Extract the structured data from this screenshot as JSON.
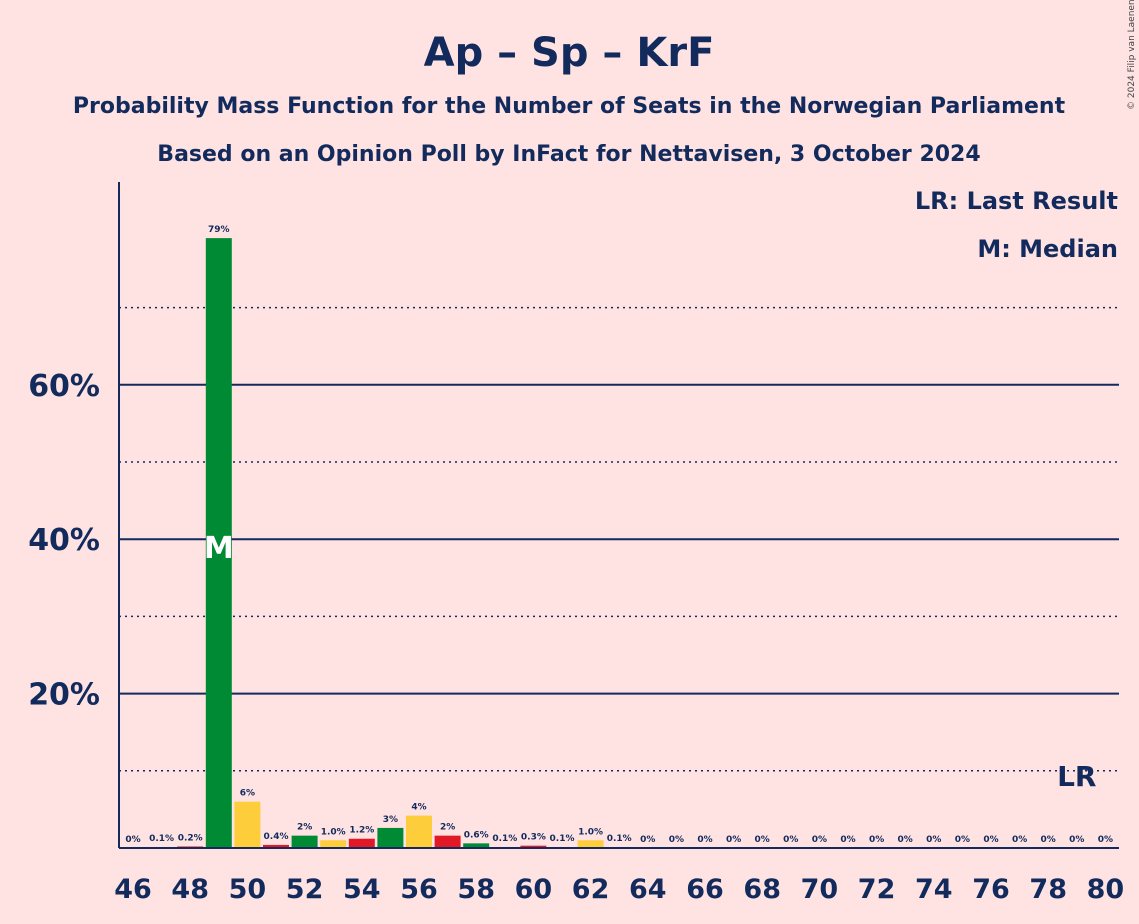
{
  "header": {
    "title": "Ap – Sp – KrF",
    "subtitle": "Probability Mass Function for the Number of Seats in the Norwegian Parliament",
    "source": "Based on an Opinion Poll by InFact for Nettavisen, 3 October 2024",
    "copyright": "© 2024 Filip van Laenen"
  },
  "legend": {
    "last_result": "LR: Last Result",
    "median": "M: Median"
  },
  "markers": {
    "median_label": "M",
    "median_seat": 49,
    "last_result_label": "LR",
    "last_result_seat": 79
  },
  "colors": {
    "background": "#FFE3E3",
    "text": "#122B5C",
    "ap": "#E11926",
    "sp": "#008A34",
    "krf": "#FECD3B"
  },
  "chart_data": {
    "type": "bar",
    "x": [
      46,
      47,
      48,
      49,
      50,
      51,
      52,
      53,
      54,
      55,
      56,
      57,
      58,
      59,
      60,
      61,
      62,
      63,
      64,
      65,
      66,
      67,
      68,
      69,
      70,
      71,
      72,
      73,
      74,
      75,
      76,
      77,
      78,
      79,
      80
    ],
    "values": [
      0,
      0.1,
      0.2,
      79,
      6,
      0.4,
      1.6,
      1.0,
      1.2,
      2.6,
      4.2,
      1.6,
      0.6,
      0.1,
      0.3,
      0.1,
      1.0,
      0.1,
      0,
      0,
      0,
      0,
      0,
      0,
      0,
      0,
      0,
      0,
      0,
      0,
      0,
      0,
      0,
      0,
      0
    ],
    "labels": [
      "0%",
      "0.1%",
      "0.2%",
      "79%",
      "6%",
      "0.4%",
      "2%",
      "1.0%",
      "1.2%",
      "3%",
      "4%",
      "2%",
      "0.6%",
      "0.1%",
      "0.3%",
      "0.1%",
      "1.0%",
      "0.1%",
      "0%",
      "0%",
      "0%",
      "0%",
      "0%",
      "0%",
      "0%",
      "0%",
      "0%",
      "0%",
      "0%",
      "0%",
      "0%",
      "0%",
      "0%",
      "0%",
      "0%"
    ],
    "bar_colors": [
      "#008A34",
      "#FECD3B",
      "#E11926",
      "#008A34",
      "#FECD3B",
      "#E11926",
      "#008A34",
      "#FECD3B",
      "#E11926",
      "#008A34",
      "#FECD3B",
      "#E11926",
      "#008A34",
      "#FECD3B",
      "#E11926",
      "#008A34",
      "#FECD3B",
      "#E11926",
      "#008A34",
      "#FECD3B",
      "#E11926",
      "#008A34",
      "#FECD3B",
      "#E11926",
      "#008A34",
      "#FECD3B",
      "#E11926",
      "#008A34",
      "#FECD3B",
      "#E11926",
      "#008A34",
      "#FECD3B",
      "#E11926",
      "#008A34",
      "#FECD3B"
    ],
    "x_ticks": [
      46,
      48,
      50,
      52,
      54,
      56,
      58,
      60,
      62,
      64,
      66,
      68,
      70,
      72,
      74,
      76,
      78,
      80
    ],
    "y_ticks": [
      {
        "value": 20,
        "label": "20%"
      },
      {
        "value": 40,
        "label": "40%"
      },
      {
        "value": 60,
        "label": "60%"
      }
    ],
    "minor_gridlines": [
      10,
      30,
      50,
      70
    ],
    "ylim": [
      0,
      86
    ]
  }
}
